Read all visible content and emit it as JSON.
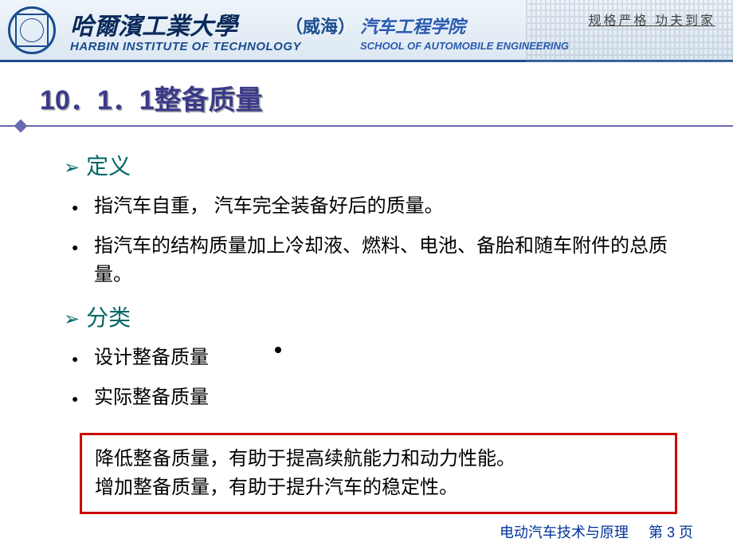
{
  "header": {
    "uni_name_cn": "哈爾濱工業大學",
    "uni_campus": "（威海）",
    "uni_name_en": "HARBIN INSTITUTE OF TECHNOLOGY",
    "school_cn": "汽车工程学院",
    "school_en": "SCHOOL OF AUTOMOBILE ENGINEERING",
    "motto": "规格严格 功夫到家"
  },
  "title": {
    "number": "10．1．1",
    "text": "整备质量"
  },
  "sections": {
    "definition": {
      "heading": "定义",
      "items": [
        "指汽车自重， 汽车完全装备好后的质量。",
        "指汽车的结构质量加上冷却液、燃料、电池、备胎和随车附件的总质量。"
      ]
    },
    "category": {
      "heading": "分类",
      "items": [
        "设计整备质量",
        "实际整备质量"
      ]
    }
  },
  "highlight": {
    "line1": "降低整备质量，有助于提高续航能力和动力性能。",
    "line2": "增加整备质量，有助于提升汽车的稳定性。"
  },
  "footer": {
    "course": "电动汽车技术与原理",
    "page_prefix": "第",
    "page_current": "3",
    "page_suffix": "页"
  },
  "colors": {
    "header_border": "#1a4d8f",
    "title_color": "#3a3a8a",
    "subheading_color": "#006666",
    "highlight_border": "#cc0000",
    "footer_color": "#003399"
  }
}
